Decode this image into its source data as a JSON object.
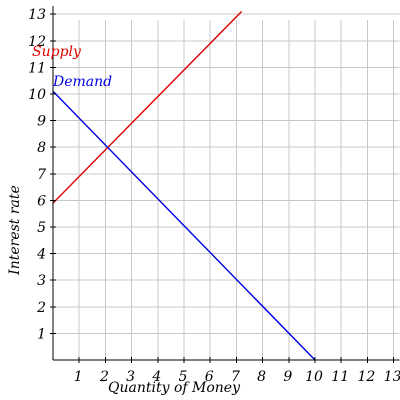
{
  "chart_data": {
    "type": "line",
    "xlabel": "Quantity of Money",
    "ylabel": "Interest rate",
    "xlim": [
      0,
      13
    ],
    "ylim": [
      0,
      13
    ],
    "x_ticks": [
      "1",
      "2",
      "3",
      "4",
      "5",
      "6",
      "7",
      "8",
      "9",
      "10",
      "11",
      "12",
      "13"
    ],
    "y_ticks": [
      "1",
      "2",
      "3",
      "4",
      "5",
      "6",
      "7",
      "8",
      "9",
      "10",
      "11",
      "12",
      "13"
    ],
    "grid": true,
    "series": [
      {
        "name": "Supply",
        "color": "#e00000",
        "x": [
          0,
          7.2
        ],
        "y": [
          5.9,
          13.1
        ]
      },
      {
        "name": "Demand",
        "color": "#0000e0",
        "x": [
          0,
          10
        ],
        "y": [
          10.1,
          0
        ]
      }
    ]
  }
}
